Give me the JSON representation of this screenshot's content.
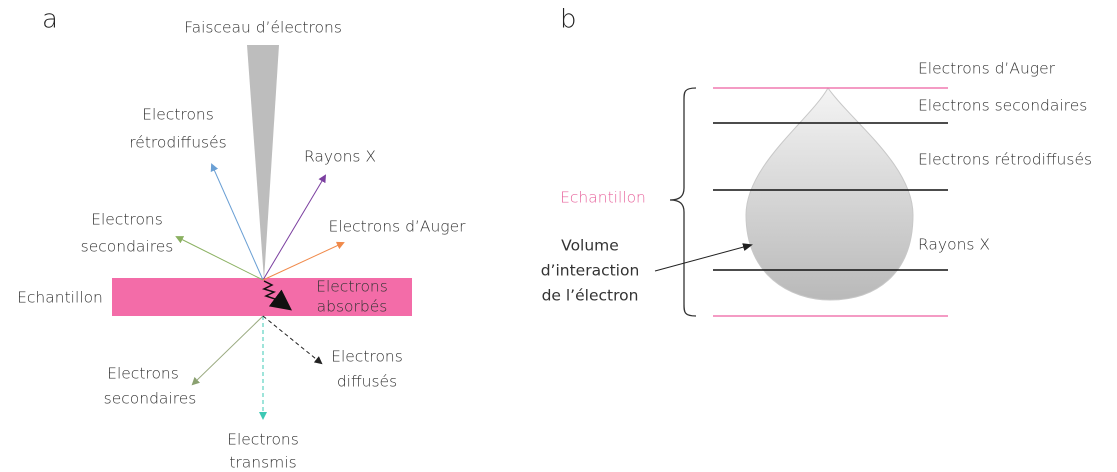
{
  "panel_a": {
    "label": "a",
    "beam": "Faisceau d’électrons",
    "sample": "Echantillon",
    "backscattered": [
      "Electrons",
      "rétrodiffusés"
    ],
    "xrays": "Rayons X",
    "auger": "Electrons d’Auger",
    "secondary_top": [
      "Electrons",
      "secondaires"
    ],
    "absorbed": [
      "Electrons",
      "absorbés"
    ],
    "secondary_bottom": [
      "Electrons",
      "secondaires"
    ],
    "transmitted": [
      "Electrons",
      "transmis"
    ],
    "scattered": [
      "Electrons",
      "diffusés"
    ]
  },
  "panel_b": {
    "label": "b",
    "sample": "Echantillon",
    "volume": [
      "Volume",
      "d’interaction",
      "de l’électron"
    ],
    "layers": [
      "Electrons d’Auger",
      "Electrons secondaires",
      "Electrons rétrodiffusés",
      "Rayons X"
    ]
  }
}
